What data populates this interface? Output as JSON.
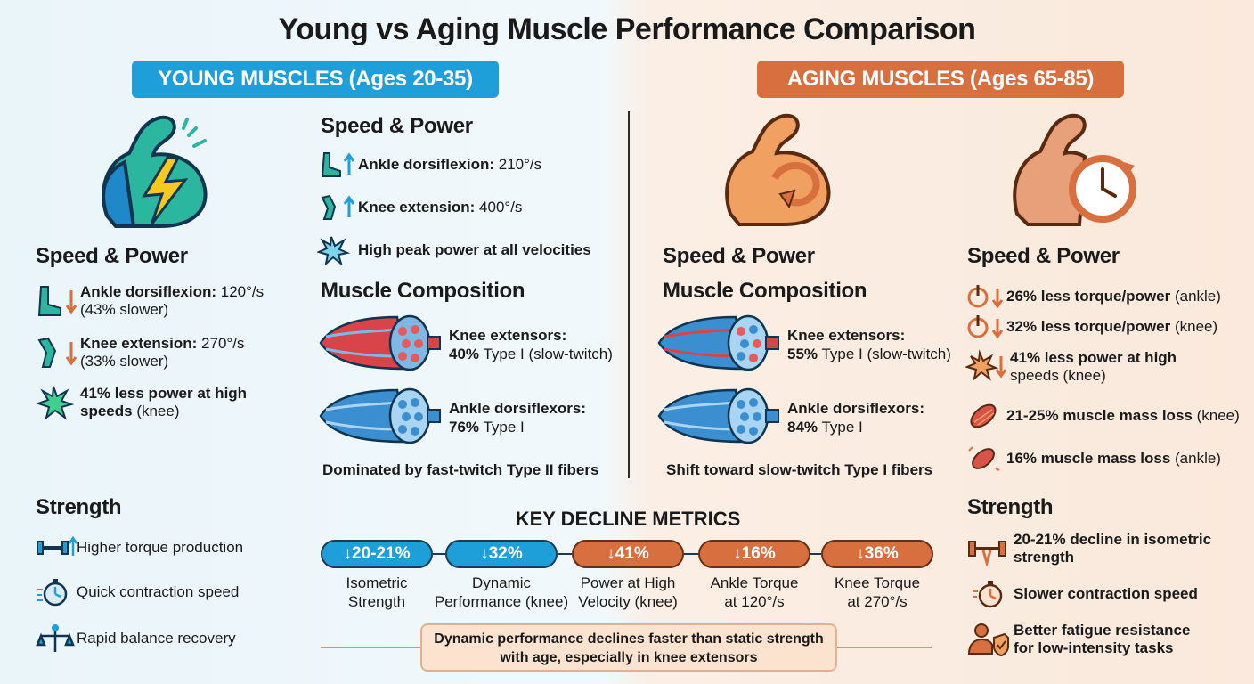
{
  "title": "Young vs Aging Muscle Performance Comparison",
  "young": {
    "banner": "YOUNG MUSCLES (Ages 20-35)",
    "speed_heading": "Speed & Power",
    "speed_items": [
      {
        "bold": "Ankle dorsiflexion:",
        "rest": " 210°/s"
      },
      {
        "bold": "Knee extension:",
        "rest": " 400°/s"
      },
      {
        "bold": "High peak power at all velocities",
        "rest": ""
      }
    ],
    "composition_heading": "Muscle Composition",
    "fibers": [
      {
        "line1": "Knee extensors:",
        "bold": "40%",
        "rest": " Type I (slow-twitch)"
      },
      {
        "line1": "Ankle dorsiflexors:",
        "bold": "76%",
        "rest": " Type I"
      }
    ],
    "caption": "Dominated by fast-twitch Type II fibers",
    "strength_heading": "Strength",
    "strength_items": [
      "Higher torque production",
      "Quick contraction speed",
      "Rapid balance recovery"
    ]
  },
  "aging": {
    "banner": "AGING MUSCLES (Ages 65-85)",
    "speed_heading_center": "Speed & Power",
    "speed_items_left": [
      {
        "bold": "Ankle dorsiflexion:",
        "rest": " 120°/s",
        "line2": "(43% slower)"
      },
      {
        "bold": "Knee extension:",
        "rest": " 270°/s",
        "line2": "(33% slower)"
      },
      {
        "bold": "41% less power at high",
        "rest": "",
        "line2bold": "speeds",
        "line2": " (knee)"
      }
    ],
    "left_speed_heading": "Speed & Power",
    "composition_heading": "Muscle Composition",
    "fibers": [
      {
        "line1": "Knee extensors:",
        "bold": "55%",
        "rest": " Type I (slow-twitch)"
      },
      {
        "line1": "Ankle dorsiflexors:",
        "bold": "84%",
        "rest": " Type I"
      }
    ],
    "caption": "Shift toward slow-twitch Type I fibers",
    "right_speed_heading": "Speed & Power",
    "right_items": [
      {
        "bold": "26% less torque/power",
        "rest": " (ankle)",
        "line2": ""
      },
      {
        "bold": "32% less torque/power",
        "rest": " (knee)",
        "line2": ""
      },
      {
        "bold": "41% less power at high",
        "rest": "",
        "line2": "speeds (knee)"
      },
      {
        "bold": "21-25% muscle mass loss",
        "rest": " (knee)",
        "line2": ""
      },
      {
        "bold": "16% muscle mass loss",
        "rest": " (ankle)",
        "line2": ""
      }
    ],
    "strength_heading": "Strength",
    "strength_items": [
      {
        "l1": "20-21% decline in isometric",
        "l2": "strength"
      },
      {
        "l1": "Slower contraction speed",
        "l2": ""
      },
      {
        "l1": "Better fatigue resistance",
        "l2": "for low-intensity tasks"
      }
    ]
  },
  "metrics": {
    "title": "KEY DECLINE METRICS",
    "items": [
      {
        "value": "↓20-21%",
        "l1": "Isometric",
        "l2": "Strength",
        "color": "blue"
      },
      {
        "value": "↓32%",
        "l1": "Dynamic",
        "l2": "Performance (knee)",
        "color": "blue"
      },
      {
        "value": "↓41%",
        "l1": "Power at High",
        "l2": "Velocity (knee)",
        "color": "orange"
      },
      {
        "value": "↓16%",
        "l1": "Ankle Torque",
        "l2": "at 120°/s",
        "color": "orange"
      },
      {
        "value": "↓36%",
        "l1": "Knee Torque",
        "l2": "at 270°/s",
        "color": "orange"
      }
    ],
    "note_l1": "Dynamic performance declines faster than static strength",
    "note_l2": "with age, especially in knee extensors"
  },
  "colors": {
    "young": "#1e9fd9",
    "aging": "#d86f3e"
  }
}
